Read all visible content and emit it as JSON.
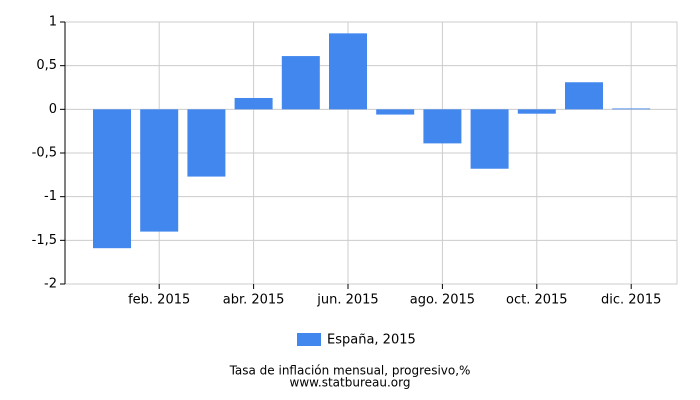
{
  "chart_data": {
    "type": "bar",
    "categories": [
      null,
      "feb. 2015",
      null,
      "abr. 2015",
      null,
      "jun. 2015",
      null,
      "ago. 2015",
      null,
      "oct. 2015",
      null,
      "dic. 2015"
    ],
    "series": [
      {
        "name": "España, 2015",
        "color": "#4287ee",
        "values": [
          -1.59,
          -1.4,
          -0.77,
          0.13,
          0.61,
          0.87,
          -0.06,
          -0.39,
          -0.68,
          -0.05,
          0.31,
          0.01
        ]
      }
    ],
    "ylim": [
      -2,
      1
    ],
    "yticks": [
      -2,
      {
        "value": -1.5,
        "label": "-1,5"
      },
      -1,
      {
        "value": -0.5,
        "label": "-0,5"
      },
      0,
      {
        "value": 0.5,
        "label": "0,5"
      },
      1
    ],
    "grid": true,
    "footer": "Tasa de inflación mensual, progresivo,%",
    "source": "www.statbureau.org"
  }
}
